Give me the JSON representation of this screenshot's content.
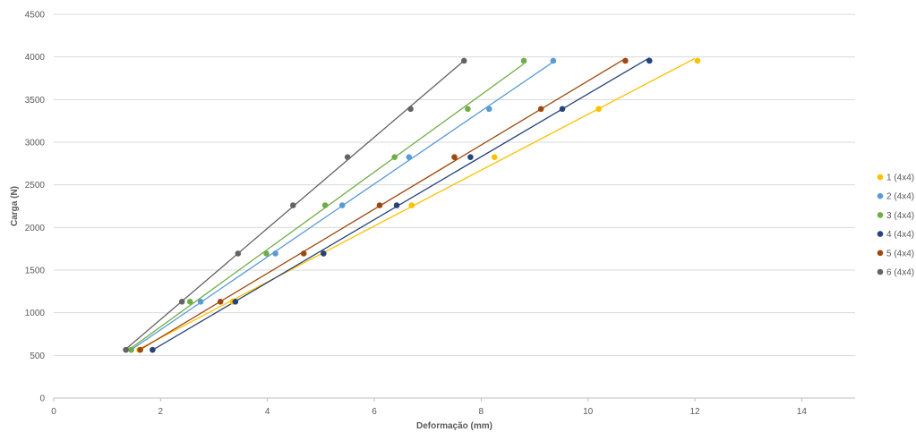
{
  "chart_data": {
    "type": "scatter",
    "title": "",
    "xlabel": "Deformação (mm)",
    "ylabel": "Carga (N)",
    "xlim": [
      0,
      15
    ],
    "ylim": [
      0,
      4500
    ],
    "xticks": [
      0,
      2,
      4,
      6,
      8,
      10,
      12,
      14
    ],
    "yticks": [
      0,
      500,
      1000,
      1500,
      2000,
      2500,
      3000,
      3500,
      4000,
      4500
    ],
    "grid": true,
    "legend_position": "right",
    "trendlines": true,
    "series": [
      {
        "name": "1 (4x4)",
        "color": "#FFC000",
        "x": [
          1.6,
          3.35,
          5.05,
          6.7,
          8.25,
          10.2,
          12.05
        ],
        "y": [
          565,
          1130,
          1695,
          2260,
          2825,
          3390,
          3955
        ],
        "trend_x": [
          1.6,
          12.0
        ]
      },
      {
        "name": "2 (4x4)",
        "color": "#5B9BD5",
        "x": [
          1.45,
          2.75,
          4.15,
          5.4,
          6.65,
          8.15,
          9.35
        ],
        "y": [
          565,
          1130,
          1695,
          2260,
          2825,
          3390,
          3955
        ],
        "trend_x": [
          1.45,
          9.35
        ]
      },
      {
        "name": "3 (4x4)",
        "color": "#70AD47",
        "x": [
          1.45,
          2.55,
          3.98,
          5.08,
          6.38,
          7.75,
          8.8
        ],
        "y": [
          565,
          1130,
          1695,
          2260,
          2825,
          3390,
          3955
        ],
        "trend_x": [
          1.45,
          8.8
        ]
      },
      {
        "name": "4 (4x4)",
        "color": "#264478",
        "x": [
          1.85,
          3.4,
          5.05,
          6.42,
          7.8,
          9.52,
          11.15
        ],
        "y": [
          565,
          1130,
          1695,
          2260,
          2825,
          3390,
          3955
        ],
        "trend_x": [
          1.85,
          11.15
        ]
      },
      {
        "name": "5 (4x4)",
        "color": "#9E480E",
        "x": [
          1.62,
          3.12,
          4.68,
          6.1,
          7.5,
          9.12,
          10.7
        ],
        "y": [
          565,
          1130,
          1695,
          2260,
          2825,
          3390,
          3955
        ],
        "trend_x": [
          1.62,
          10.7
        ]
      },
      {
        "name": "6 (4x4)",
        "color": "#636363",
        "x": [
          1.35,
          2.4,
          3.45,
          4.48,
          5.5,
          6.68,
          7.68
        ],
        "y": [
          565,
          1130,
          1695,
          2260,
          2825,
          3390,
          3955
        ],
        "trend_x": [
          1.35,
          7.68
        ]
      }
    ]
  }
}
